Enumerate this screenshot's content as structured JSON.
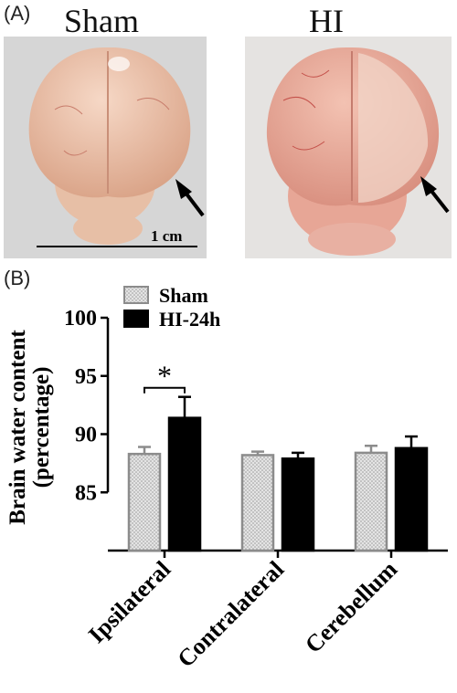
{
  "panel_a": {
    "label": "(A)",
    "left_title": "Sham",
    "right_title": "HI",
    "scale_bar_label": "1 cm"
  },
  "panel_b": {
    "label": "(B)"
  },
  "colors": {
    "sham_fill": "#d8d8d8",
    "sham_edge": "#8c8c8c",
    "hi_fill": "#000000",
    "brain_sham": "#e9b9a0",
    "brain_hi": "#e6a090",
    "photo_bg": "#dcdcdc"
  },
  "icons": [
    "arrow-icon-left-photo",
    "arrow-icon-right-photo"
  ],
  "chart_data": {
    "type": "bar",
    "ylabel_line1": "Brain water content",
    "ylabel_line2": "(percentage)",
    "ylim": [
      80,
      100
    ],
    "yticks": [
      85,
      90,
      95,
      100
    ],
    "categories": [
      "Ipsilateral",
      "Contralateral",
      "Cerebellum"
    ],
    "legend_position": "top-left",
    "series": [
      {
        "name": "Sham",
        "values": [
          88.3,
          88.2,
          88.4
        ],
        "errors": [
          0.6,
          0.3,
          0.6
        ]
      },
      {
        "name": "HI-24h",
        "values": [
          91.4,
          87.9,
          88.8
        ],
        "errors": [
          1.8,
          0.5,
          1.0
        ]
      }
    ],
    "annotations": [
      {
        "text": "*",
        "category": "Ipsilateral"
      }
    ]
  }
}
